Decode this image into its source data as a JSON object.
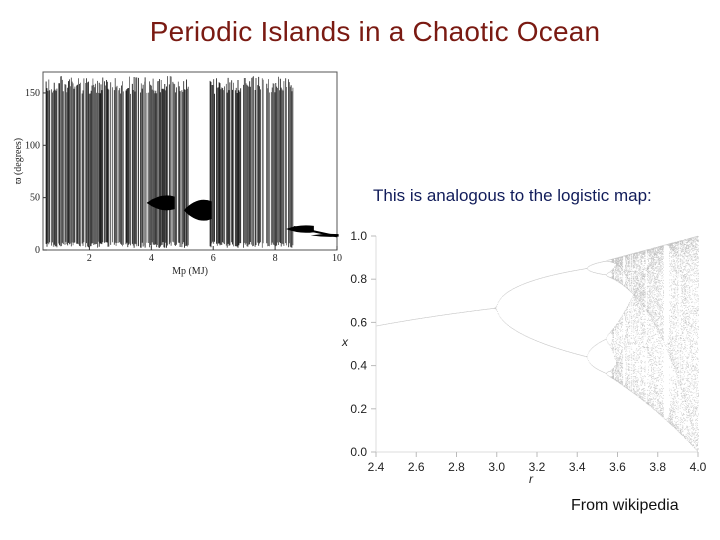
{
  "slide": {
    "title": "Periodic Islands in a Chaotic Ocean",
    "caption": "This is analogous to the logistic map:",
    "source_note": "From wikipedia"
  },
  "chart_data": [
    {
      "type": "scatter",
      "title": "",
      "xlabel": "Mp (MJ)",
      "ylabel": "ϖ (degrees)",
      "xlim": [
        0.5,
        10
      ],
      "ylim": [
        0,
        170
      ],
      "xticks": [
        2,
        4,
        6,
        8,
        10
      ],
      "yticks": [
        0,
        50,
        100,
        150
      ],
      "grid": false,
      "regimes": [
        {
          "x0": 0.6,
          "x1": 2.6,
          "kind": "chaotic",
          "color": "#000000"
        },
        {
          "x0": 2.6,
          "x1": 3.8,
          "kind": "chaotic",
          "color": "#000000"
        },
        {
          "x0": 3.8,
          "x1": 4.0,
          "kind": "chaotic",
          "color": "#000000"
        },
        {
          "x0": 4.0,
          "x1": 5.2,
          "kind": "chaotic",
          "color": "#000000"
        },
        {
          "x0": 5.9,
          "x1": 8.6,
          "kind": "chaotic",
          "color": "#000000"
        }
      ],
      "islands": [
        {
          "x": 4.3,
          "y_center": 45,
          "y_half": 10
        },
        {
          "x": 5.5,
          "y_center": 38,
          "y_half": 14
        },
        {
          "x": 8.8,
          "y_center": 20,
          "y_half": 5
        },
        {
          "x": 9.6,
          "y_center": 14,
          "y_half": 2
        }
      ]
    },
    {
      "type": "scatter",
      "title": "",
      "xlabel": "r",
      "ylabel": "x",
      "xlim": [
        2.4,
        4.0
      ],
      "ylim": [
        0.0,
        1.0
      ],
      "xticks": [
        2.4,
        2.6,
        2.8,
        3.0,
        3.2,
        3.4,
        3.6,
        3.8,
        4.0
      ],
      "yticks": [
        0.0,
        0.2,
        0.4,
        0.6,
        0.8,
        1.0
      ],
      "grid": false,
      "series": [
        {
          "kind": "fixed-point",
          "formula": "x = 1 - 1/r",
          "r_start": 2.4,
          "r_end": 3.0
        },
        {
          "kind": "bifurcation-diagram",
          "formula": "x_{n+1} = r x_n (1 - x_n)",
          "r_start": 2.4,
          "r_end": 4.0
        }
      ],
      "color": "#555555"
    }
  ]
}
